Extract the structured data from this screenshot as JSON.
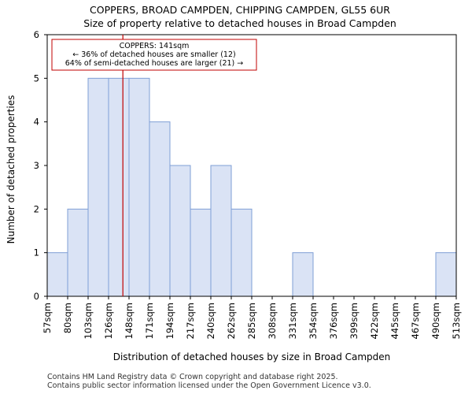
{
  "chart_data": {
    "type": "bar",
    "title": "COPPERS, BROAD CAMPDEN, CHIPPING CAMPDEN, GL55 6UR",
    "subtitle": "Size of property relative to detached houses in Broad Campden",
    "xlabel": "Distribution of detached houses by size in Broad Campden",
    "ylabel": "Number of detached properties",
    "x_tick_labels": [
      "57sqm",
      "80sqm",
      "103sqm",
      "126sqm",
      "148sqm",
      "171sqm",
      "194sqm",
      "217sqm",
      "240sqm",
      "262sqm",
      "285sqm",
      "308sqm",
      "331sqm",
      "354sqm",
      "376sqm",
      "399sqm",
      "422sqm",
      "445sqm",
      "467sqm",
      "490sqm",
      "513sqm"
    ],
    "values": [
      1,
      2,
      5,
      5,
      5,
      4,
      3,
      2,
      3,
      2,
      0,
      0,
      1,
      0,
      0,
      0,
      0,
      0,
      0,
      1
    ],
    "ylim": [
      0,
      6
    ],
    "y_ticks": [
      0,
      1,
      2,
      3,
      4,
      5,
      6
    ],
    "marker": {
      "bin_position": 3.7,
      "lines": [
        "COPPERS: 141sqm",
        "← 36% of detached houses are smaller (12)",
        "64% of semi-detached houses are larger (21) →"
      ]
    },
    "footer": [
      "Contains HM Land Registry data © Crown copyright and database right 2025.",
      "Contains public sector information licensed under the Open Government Licence v3.0."
    ],
    "colors": {
      "bar_fill": "#dae3f5",
      "bar_stroke": "#7f9fd6",
      "marker": "#c00000",
      "annotation_border": "#c00000"
    }
  }
}
